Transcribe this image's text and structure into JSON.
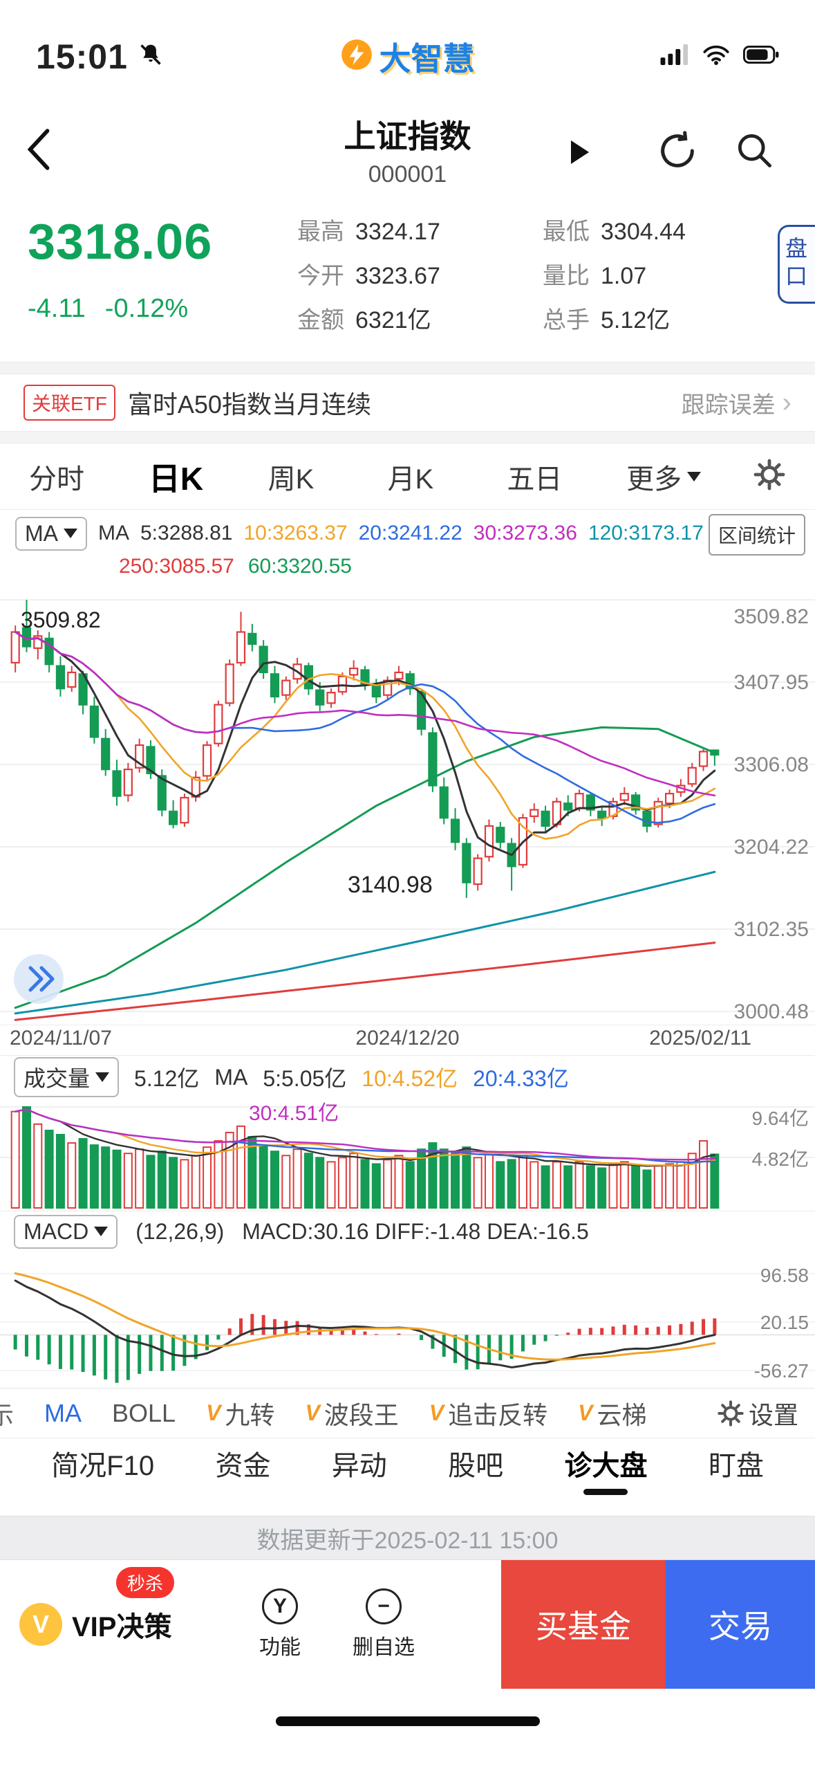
{
  "status_bar": {
    "time": "15:01",
    "logo_text": "大智慧"
  },
  "header": {
    "title": "上证指数",
    "code": "000001"
  },
  "quote": {
    "price": "3318.06",
    "change": "-4.11",
    "change_pct": "-0.12%",
    "accent_color": "#0fa35a",
    "stats": [
      {
        "label": "最高",
        "value": "3324.17"
      },
      {
        "label": "今开",
        "value": "3323.67"
      },
      {
        "label": "金额",
        "value": "6321亿"
      },
      {
        "label": "最低",
        "value": "3304.44"
      },
      {
        "label": "量比",
        "value": "1.07"
      },
      {
        "label": "总手",
        "value": "5.12亿"
      }
    ],
    "pankou_label": "盘口"
  },
  "etf_bar": {
    "badge": "关联ETF",
    "name": "富时A50指数当月连续",
    "right": "跟踪误差"
  },
  "period_tabs": {
    "items": [
      {
        "label": "分时"
      },
      {
        "label": "日K",
        "selected": true
      },
      {
        "label": "周K"
      },
      {
        "label": "月K"
      },
      {
        "label": "五日"
      },
      {
        "label": "更多"
      }
    ]
  },
  "chart_header": {
    "ma_chip": "MA",
    "legend1": {
      "prefix": "MA",
      "m5": "5:3288.81",
      "m10": "10:3263.37",
      "m20": "20:3241.22",
      "m30": "30:3273.36",
      "m120": "120:3173.17"
    },
    "legend2": {
      "m250": "250:3085.57",
      "m60": "60:3320.55"
    },
    "range_button": "区间统计"
  },
  "vol_header": {
    "chip": "成交量",
    "value": "5.12亿",
    "prefix": "MA",
    "m5": "5:5.05亿",
    "m10": "10:4.52亿",
    "m20": "20:4.33亿",
    "m30": "30:4.51亿"
  },
  "macd_header": {
    "chip": "MACD",
    "params": "(12,26,9)",
    "values": "MACD:30.16 DIFF:-1.48 DEA:-16.5"
  },
  "chart_data": {
    "type": "candlestick",
    "title": "上证指数 日K",
    "x_axis": [
      "2024/11/07",
      "2024/12/20",
      "2025/02/11"
    ],
    "price_axis": [
      "3509.82",
      "3407.95",
      "3306.08",
      "3204.22",
      "3102.35",
      "3000.48"
    ],
    "annotations": {
      "high": "3509.82",
      "low": "3140.98"
    },
    "candles": [
      [
        3432,
        3478,
        3420,
        3470
      ],
      [
        3475,
        3509.82,
        3445,
        3452
      ],
      [
        3450,
        3472,
        3436,
        3465
      ],
      [
        3462,
        3470,
        3420,
        3430
      ],
      [
        3428,
        3440,
        3390,
        3400
      ],
      [
        3402,
        3428,
        3396,
        3420
      ],
      [
        3418,
        3422,
        3368,
        3380
      ],
      [
        3378,
        3390,
        3332,
        3340
      ],
      [
        3338,
        3350,
        3292,
        3300
      ],
      [
        3298,
        3312,
        3255,
        3267
      ],
      [
        3268,
        3308,
        3260,
        3300
      ],
      [
        3302,
        3338,
        3296,
        3330
      ],
      [
        3328,
        3336,
        3288,
        3295
      ],
      [
        3292,
        3300,
        3242,
        3250
      ],
      [
        3248,
        3262,
        3227,
        3232
      ],
      [
        3234,
        3270,
        3229,
        3265
      ],
      [
        3266,
        3298,
        3260,
        3290
      ],
      [
        3292,
        3335,
        3287,
        3330
      ],
      [
        3332,
        3385,
        3328,
        3380
      ],
      [
        3382,
        3436,
        3378,
        3430
      ],
      [
        3432,
        3495,
        3428,
        3470
      ],
      [
        3468,
        3480,
        3446,
        3455
      ],
      [
        3452,
        3460,
        3412,
        3420
      ],
      [
        3418,
        3428,
        3382,
        3390
      ],
      [
        3392,
        3415,
        3386,
        3410
      ],
      [
        3412,
        3438,
        3406,
        3430
      ],
      [
        3428,
        3432,
        3392,
        3400
      ],
      [
        3398,
        3408,
        3372,
        3380
      ],
      [
        3382,
        3400,
        3376,
        3395
      ],
      [
        3396,
        3420,
        3392,
        3415
      ],
      [
        3417,
        3435,
        3410,
        3425
      ],
      [
        3423,
        3428,
        3398,
        3405
      ],
      [
        3403,
        3412,
        3382,
        3390
      ],
      [
        3392,
        3415,
        3386,
        3410
      ],
      [
        3412,
        3428,
        3404,
        3420
      ],
      [
        3418,
        3422,
        3392,
        3400
      ],
      [
        3396,
        3398,
        3342,
        3350
      ],
      [
        3345,
        3352,
        3272,
        3280
      ],
      [
        3278,
        3290,
        3232,
        3240
      ],
      [
        3238,
        3252,
        3200,
        3210
      ],
      [
        3208,
        3215,
        3140.98,
        3160
      ],
      [
        3158,
        3195,
        3150,
        3190
      ],
      [
        3192,
        3238,
        3186,
        3230
      ],
      [
        3228,
        3235,
        3202,
        3210
      ],
      [
        3208,
        3215,
        3150,
        3180
      ],
      [
        3182,
        3245,
        3178,
        3240
      ],
      [
        3242,
        3258,
        3234,
        3250
      ],
      [
        3248,
        3255,
        3222,
        3230
      ],
      [
        3232,
        3265,
        3228,
        3260
      ],
      [
        3258,
        3268,
        3242,
        3250
      ],
      [
        3252,
        3275,
        3248,
        3270
      ],
      [
        3268,
        3272,
        3242,
        3250
      ],
      [
        3248,
        3255,
        3230,
        3240
      ],
      [
        3242,
        3265,
        3238,
        3260
      ],
      [
        3262,
        3278,
        3256,
        3270
      ],
      [
        3268,
        3272,
        3244,
        3250
      ],
      [
        3248,
        3252,
        3222,
        3230
      ],
      [
        3232,
        3265,
        3228,
        3260
      ],
      [
        3258,
        3275,
        3252,
        3270
      ],
      [
        3272,
        3288,
        3266,
        3280
      ],
      [
        3282,
        3308,
        3278,
        3302
      ],
      [
        3304,
        3325,
        3298,
        3322
      ],
      [
        3323.67,
        3324.17,
        3304.44,
        3318.06
      ]
    ],
    "volumes": [
      9.2,
      9.64,
      8.0,
      7.4,
      7.0,
      6.2,
      6.6,
      6.0,
      5.8,
      5.5,
      5.2,
      5.6,
      5.0,
      5.4,
      4.8,
      4.6,
      5.0,
      5.8,
      6.4,
      7.2,
      7.8,
      6.8,
      6.0,
      5.4,
      5.0,
      5.6,
      5.2,
      4.8,
      4.4,
      4.8,
      5.2,
      4.6,
      4.2,
      4.6,
      5.0,
      4.4,
      5.6,
      6.2,
      5.6,
      5.2,
      5.8,
      4.8,
      5.2,
      4.4,
      4.6,
      5.0,
      4.4,
      4.0,
      4.4,
      4.0,
      4.4,
      4.0,
      3.8,
      4.2,
      4.4,
      4.0,
      3.6,
      4.0,
      4.2,
      4.4,
      5.2,
      6.4,
      5.12
    ],
    "vol_axis": [
      "9.64亿",
      "4.82亿"
    ],
    "macd_axis": [
      "96.58",
      "20.15",
      "-56.27"
    ],
    "ma_short_windows": [
      5,
      10,
      20,
      30
    ],
    "vol_ma_windows": [
      5,
      10,
      20,
      30
    ],
    "ma_long_keyframes": {
      "ma60": [
        [
          0,
          3005
        ],
        [
          8,
          3045
        ],
        [
          16,
          3110
        ],
        [
          24,
          3185
        ],
        [
          32,
          3255
        ],
        [
          40,
          3310
        ],
        [
          46,
          3340
        ],
        [
          52,
          3352
        ],
        [
          57,
          3350
        ],
        [
          62,
          3320.55
        ]
      ],
      "ma120": [
        [
          0,
          2998
        ],
        [
          12,
          3022
        ],
        [
          24,
          3052
        ],
        [
          36,
          3088
        ],
        [
          48,
          3125
        ],
        [
          62,
          3173.17
        ]
      ],
      "ma250": [
        [
          0,
          2990
        ],
        [
          15,
          3012
        ],
        [
          30,
          3035
        ],
        [
          45,
          3058
        ],
        [
          62,
          3085.57
        ]
      ]
    },
    "macd_render": {
      "fast": 12,
      "slow": 26,
      "signal": 9,
      "ema_fast_seed": 3500,
      "ema_slow_seed": 3405,
      "dea_seed": 100
    },
    "colors": {
      "up": "#e03c3c",
      "down": "#149b54",
      "ma5": "#333333",
      "ma10": "#f0a428",
      "ma20": "#2e6be0",
      "ma30": "#bf2fbf",
      "ma60": "#149b54",
      "ma120": "#0e93a8",
      "ma250": "#e03c3c",
      "dif": "#333333",
      "dea": "#f0a428",
      "grid": "#ececec",
      "axis_text": "#868686"
    }
  },
  "indicator_bar": {
    "cut": "示",
    "v_icon": "V",
    "items": [
      {
        "label": "MA",
        "active": true
      },
      {
        "label": "BOLL"
      },
      {
        "label": "九转",
        "vip": true
      },
      {
        "label": "波段王",
        "vip": true
      },
      {
        "label": "追击反转",
        "vip": true
      },
      {
        "label": "云梯",
        "vip": true
      }
    ],
    "settings": "设置"
  },
  "bottom_nav": {
    "items": [
      {
        "label": "简况F10"
      },
      {
        "label": "资金"
      },
      {
        "label": "异动"
      },
      {
        "label": "股吧"
      },
      {
        "label": "诊大盘",
        "active": true
      },
      {
        "label": "盯盘"
      }
    ]
  },
  "update_notice": {
    "text": "数据更新于2025-02-11 15:00"
  },
  "action_bar": {
    "vip": {
      "icon_letter": "V",
      "label": "VIP决策",
      "badge": "秒杀"
    },
    "tools": [
      {
        "label": "功能",
        "glyph": "Y"
      },
      {
        "label": "删自选",
        "glyph": "−"
      }
    ],
    "buy_fund": "买基金",
    "trade": "交易"
  }
}
